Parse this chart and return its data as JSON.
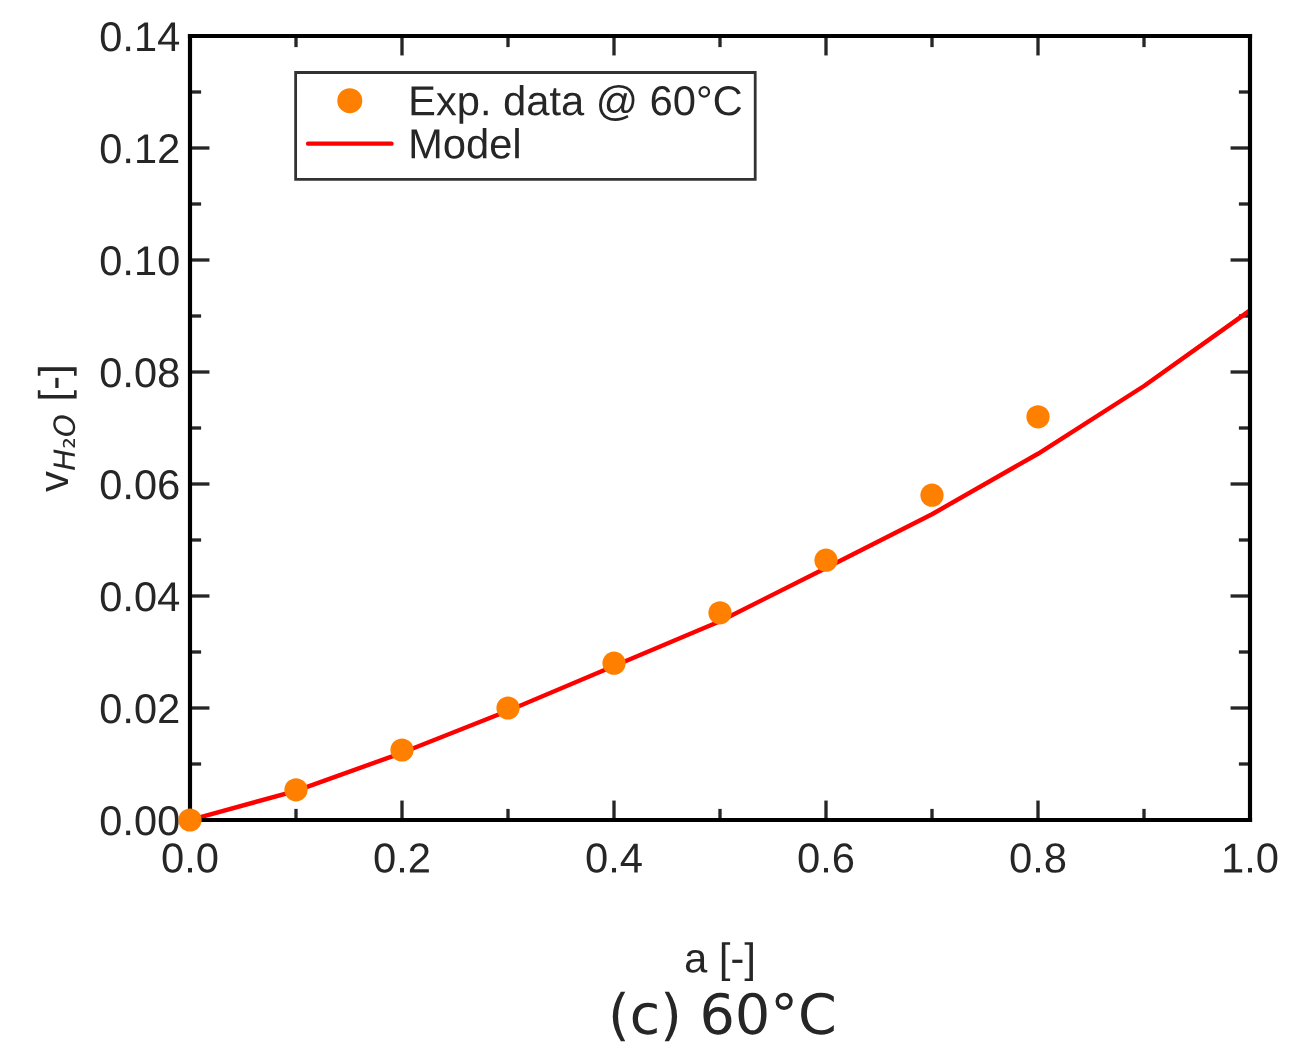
{
  "chart_data": {
    "type": "scatter",
    "xlabel": "a [-]",
    "ylabel": "v$_{H₂O}$ [-]",
    "annotations": [
      "(c) 60°C"
    ],
    "xlim": [
      0.0,
      1.0
    ],
    "xticks": [
      {
        "value": 0,
        "label": "0.0"
      },
      0.2,
      0.4,
      0.6,
      0.8,
      {
        "value": 1,
        "label": "1.0"
      }
    ],
    "ylim": [
      0.0,
      0.14
    ],
    "yticks": [
      {
        "value": 0,
        "label": "0.00"
      },
      {
        "value": 0.02,
        "label": "0.02"
      },
      {
        "value": 0.04,
        "label": "0.04"
      },
      {
        "value": 0.06,
        "label": "0.06"
      },
      {
        "value": 0.08,
        "label": "0.08"
      },
      {
        "value": 0.1,
        "label": "0.10"
      },
      {
        "value": 0.12,
        "label": "0.12"
      },
      {
        "value": 0.14,
        "label": "0.14"
      }
    ],
    "grid": false,
    "legend": "top left",
    "series": [
      {
        "name": "Exp. data @ 60°C",
        "marker": "circle",
        "color": "#ff8000",
        "x": [
          0.0,
          0.1,
          0.2,
          0.3,
          0.4,
          0.5,
          0.6,
          0.7,
          0.8
        ],
        "values": [
          0.0,
          0.0054,
          0.0125,
          0.02,
          0.028,
          0.037,
          0.0464,
          0.058,
          0.072
        ]
      },
      {
        "name": "Model",
        "type": "line",
        "line_style": "solid",
        "color": "#ff0000",
        "x": [
          0.0,
          0.1,
          0.2,
          0.3,
          0.4,
          0.5,
          0.6,
          0.7,
          0.8,
          0.9,
          1.0
        ],
        "values": [
          0.0,
          0.0052,
          0.012,
          0.0195,
          0.0275,
          0.0355,
          0.045,
          0.0546,
          0.0654,
          0.0775,
          0.091
        ]
      }
    ]
  }
}
